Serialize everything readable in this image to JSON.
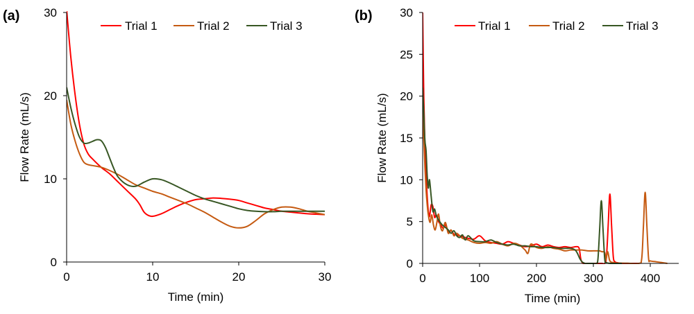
{
  "chart_data": [
    {
      "type": "line",
      "panel_label": "(a)",
      "xlabel": "Time (min)",
      "ylabel": "Flow Rate (mL/s)",
      "xlim": [
        0,
        30
      ],
      "ylim": [
        0,
        30
      ],
      "xticks": [
        0,
        10,
        20,
        30
      ],
      "yticks": [
        0,
        10,
        20,
        30
      ],
      "grid": false,
      "legend_position": "top",
      "series": [
        {
          "name": "Trial 1",
          "color": "#ff0000",
          "x": [
            0,
            0.5,
            1,
            1.5,
            2,
            2.5,
            3,
            4,
            5,
            6,
            7,
            8,
            8.5,
            9,
            9.5,
            10,
            11,
            12,
            13,
            14,
            15,
            16,
            17,
            18,
            19,
            20,
            21,
            22,
            23,
            24,
            25,
            26,
            27,
            28,
            29,
            30
          ],
          "y": [
            30.3,
            24.5,
            20.0,
            16.5,
            14.2,
            13.0,
            12.4,
            11.4,
            10.6,
            9.6,
            8.6,
            7.6,
            6.9,
            6.0,
            5.6,
            5.5,
            5.8,
            6.3,
            6.8,
            7.2,
            7.5,
            7.6,
            7.7,
            7.65,
            7.55,
            7.4,
            7.1,
            6.8,
            6.5,
            6.3,
            6.1,
            6.0,
            5.9,
            5.8,
            5.75,
            5.7
          ]
        },
        {
          "name": "Trial 2",
          "color": "#c55a11",
          "x": [
            0,
            0.5,
            1,
            1.5,
            2,
            2.5,
            3,
            4,
            5,
            6,
            7,
            8,
            9,
            10,
            11,
            12,
            13,
            14,
            15,
            16,
            17,
            18,
            19,
            20,
            21,
            22,
            23,
            24,
            25,
            26,
            27,
            28,
            29,
            30
          ],
          "y": [
            19.5,
            16.5,
            14.5,
            13.0,
            12.0,
            11.7,
            11.6,
            11.4,
            11.0,
            10.5,
            9.9,
            9.3,
            8.9,
            8.5,
            8.2,
            7.8,
            7.4,
            7.0,
            6.5,
            6.0,
            5.4,
            4.8,
            4.3,
            4.1,
            4.3,
            5.0,
            5.8,
            6.3,
            6.6,
            6.6,
            6.4,
            6.1,
            5.9,
            5.7
          ]
        },
        {
          "name": "Trial 3",
          "color": "#375623",
          "x": [
            0,
            0.5,
            1,
            1.5,
            2,
            2.5,
            3,
            3.5,
            4,
            4.5,
            5,
            5.5,
            6,
            7,
            8,
            9,
            10,
            11,
            12,
            13,
            14,
            15,
            16,
            17,
            18,
            19,
            20,
            21,
            22,
            23,
            24,
            25,
            26,
            27,
            28,
            29,
            30
          ],
          "y": [
            21.0,
            18.5,
            16.5,
            15.0,
            14.3,
            14.3,
            14.5,
            14.7,
            14.6,
            13.8,
            12.5,
            11.2,
            10.2,
            9.3,
            9.1,
            9.6,
            10.0,
            9.9,
            9.5,
            9.0,
            8.5,
            8.0,
            7.6,
            7.3,
            7.0,
            6.7,
            6.4,
            6.2,
            6.1,
            6.05,
            6.05,
            6.1,
            6.1,
            6.1,
            6.1,
            6.1,
            6.1
          ]
        }
      ]
    },
    {
      "type": "line",
      "panel_label": "(b)",
      "xlabel": "Time (min)",
      "ylabel": "Flow Rate (mL/s)",
      "xlim": [
        0,
        450
      ],
      "ylim": [
        0,
        30
      ],
      "xticks": [
        0,
        100,
        200,
        300,
        400
      ],
      "yticks": [
        0,
        5,
        10,
        15,
        20,
        25,
        30
      ],
      "grid": false,
      "legend_position": "top",
      "series": [
        {
          "name": "Trial 1",
          "color": "#ff0000",
          "x": [
            0,
            2,
            4,
            6,
            8,
            10,
            12,
            15,
            18,
            21,
            24,
            28,
            32,
            36,
            40,
            45,
            50,
            55,
            60,
            70,
            80,
            90,
            100,
            110,
            120,
            130,
            140,
            150,
            160,
            170,
            180,
            190,
            200,
            210,
            220,
            230,
            240,
            250,
            260,
            270,
            275,
            278,
            282,
            290,
            300,
            310,
            315,
            320,
            323,
            326,
            329,
            332,
            335,
            338,
            341,
            350,
            360,
            380
          ],
          "y": [
            30,
            20,
            14,
            10.5,
            8.0,
            6.2,
            5.6,
            7.0,
            6.8,
            5.5,
            5.8,
            5.0,
            4.6,
            4.2,
            4.6,
            3.8,
            3.9,
            3.5,
            3.4,
            3.2,
            3.0,
            2.9,
            3.3,
            2.7,
            2.5,
            2.4,
            2.3,
            2.6,
            2.4,
            2.2,
            2.0,
            2.1,
            2.3,
            2.0,
            2.2,
            2.0,
            1.9,
            2.0,
            1.9,
            2.0,
            1.8,
            0.5,
            0.0,
            0.0,
            0.0,
            0.0,
            0.0,
            0.0,
            0.8,
            4.5,
            8.3,
            4.5,
            0.8,
            0.2,
            0.1,
            0.0,
            0.0,
            0.0
          ]
        },
        {
          "name": "Trial 2",
          "color": "#c55a11",
          "x": [
            0,
            2,
            4,
            6,
            8,
            10,
            13,
            16,
            19,
            22,
            25,
            28,
            31,
            35,
            40,
            45,
            50,
            55,
            60,
            70,
            80,
            90,
            100,
            110,
            120,
            130,
            140,
            150,
            160,
            170,
            180,
            185,
            190,
            200,
            210,
            220,
            230,
            240,
            250,
            260,
            270,
            280,
            290,
            300,
            310,
            315,
            320,
            322,
            325,
            328,
            330,
            335,
            340,
            360,
            380,
            385,
            388,
            391,
            394,
            397,
            400,
            410,
            420,
            430
          ],
          "y": [
            19.5,
            15,
            11.5,
            8.8,
            7.0,
            5.8,
            4.9,
            5.8,
            4.6,
            4.0,
            4.9,
            5.9,
            4.5,
            3.9,
            4.9,
            3.6,
            4.0,
            3.3,
            3.6,
            3.0,
            2.8,
            2.5,
            2.4,
            2.5,
            2.4,
            2.6,
            2.3,
            2.1,
            2.4,
            2.2,
            1.6,
            1.2,
            2.3,
            1.9,
            1.8,
            2.0,
            1.8,
            1.7,
            1.5,
            1.6,
            1.6,
            1.6,
            1.5,
            1.5,
            1.5,
            1.4,
            1.3,
            0.4,
            1.4,
            0.5,
            0.2,
            0.1,
            0.05,
            0.02,
            0.0,
            0.6,
            4.5,
            8.5,
            4.5,
            0.6,
            0.3,
            0.2,
            0.1,
            0.0
          ]
        },
        {
          "name": "Trial 3",
          "color": "#375623",
          "x": [
            0,
            2,
            4,
            6,
            8,
            10,
            12,
            15,
            18,
            21,
            24,
            28,
            32,
            36,
            40,
            45,
            50,
            55,
            60,
            65,
            70,
            75,
            80,
            90,
            100,
            110,
            120,
            130,
            140,
            150,
            160,
            170,
            180,
            190,
            200,
            210,
            220,
            230,
            240,
            250,
            260,
            268,
            272,
            276,
            280,
            285,
            290,
            300,
            305,
            308,
            311,
            314,
            317,
            320,
            323,
            330,
            340,
            350
          ],
          "y": [
            21,
            18,
            14.7,
            13.5,
            10.5,
            9.0,
            10.0,
            8.0,
            6.2,
            6.5,
            5.7,
            5.2,
            4.8,
            4.5,
            4.3,
            4.0,
            3.6,
            3.9,
            3.3,
            3.1,
            3.4,
            2.8,
            3.3,
            2.7,
            2.6,
            2.6,
            2.8,
            2.5,
            2.3,
            2.2,
            2.3,
            2.1,
            2.1,
            2.0,
            2.0,
            1.9,
            1.9,
            1.9,
            1.8,
            1.8,
            1.8,
            1.6,
            1.2,
            0.6,
            0.2,
            0.0,
            0.0,
            0.0,
            0.0,
            0.5,
            4.0,
            7.5,
            4.0,
            0.5,
            0.1,
            0.0,
            0.0,
            0.0
          ]
        }
      ]
    }
  ]
}
